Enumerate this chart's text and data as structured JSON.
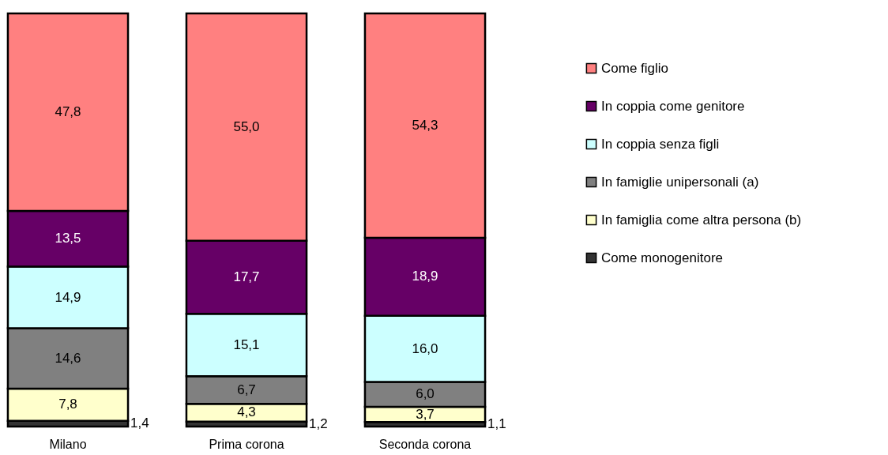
{
  "chart_data": {
    "type": "bar",
    "stacked": true,
    "categories": [
      "Milano",
      "Prima corona",
      "Seconda corona"
    ],
    "series": [
      {
        "name": "Come monogenitore",
        "color": "#333333",
        "values": [
          1.4,
          1.2,
          1.1
        ],
        "value_labels": [
          "1,4",
          "1,2",
          "1,1"
        ]
      },
      {
        "name": "In famiglia come altra persona (b)",
        "color": "#ffffcc",
        "values": [
          7.8,
          4.3,
          3.7
        ],
        "value_labels": [
          "7,8",
          "4,3",
          "3,7"
        ]
      },
      {
        "name": "In famiglie unipersonali (a)",
        "color": "#808080",
        "values": [
          14.6,
          6.7,
          6.0
        ],
        "value_labels": [
          "14,6",
          "6,7",
          "6,0"
        ]
      },
      {
        "name": "In coppia senza figli",
        "color": "#ccffff",
        "values": [
          14.9,
          15.1,
          16.0
        ],
        "value_labels": [
          "14,9",
          "15,1",
          "16,0"
        ]
      },
      {
        "name": "In coppia come genitore",
        "color": "#660066",
        "values": [
          13.5,
          17.7,
          18.9
        ],
        "value_labels": [
          "13,5",
          "17,7",
          "18,9"
        ]
      },
      {
        "name": "Come figlio",
        "color": "#ff8080",
        "values": [
          47.8,
          55.0,
          54.3
        ],
        "value_labels": [
          "47,8",
          "55,0",
          "54,3"
        ]
      }
    ],
    "legend": "right",
    "tick_labels": "x"
  }
}
